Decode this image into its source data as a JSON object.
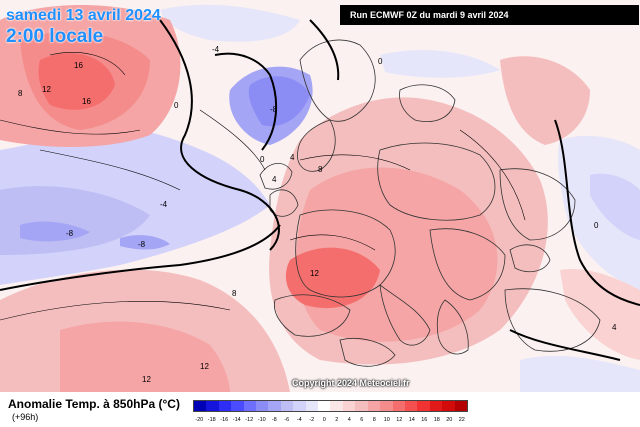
{
  "map": {
    "date_label": "samedi 13 avril 2024",
    "time_label": "2:00 locale",
    "run_label": "Run ECMWF 0Z du mardi 9 avril 2024",
    "copyright": "Copyright 2024 Meteociel.fr",
    "contour_labels": [
      "16",
      "12",
      "16",
      "8",
      "0",
      "-4",
      "-8",
      "-8",
      "-8",
      "-4",
      "0",
      "4",
      "8",
      "12",
      "12",
      "12",
      "0",
      "4",
      "8",
      "0",
      "4"
    ]
  },
  "legend": {
    "title": "Anomalie Temp. à 850hPa (°C)",
    "forecast_hour": "(+96h)",
    "ticks": [
      "-20",
      "-18",
      "-16",
      "-14",
      "-12",
      "-10",
      "-8",
      "-6",
      "-4",
      "-2",
      "0",
      "2",
      "4",
      "6",
      "8",
      "10",
      "12",
      "14",
      "16",
      "18",
      "20",
      "22"
    ],
    "colors": [
      "#0000b4",
      "#1414dc",
      "#2d2df5",
      "#4b4bff",
      "#6e6eff",
      "#8c8cf5",
      "#a5a5f5",
      "#bebef5",
      "#d2d2fa",
      "#e6e6fa",
      "#ffffff",
      "#fae6e6",
      "#fad2d2",
      "#f5bebe",
      "#f5a5a5",
      "#f58c8c",
      "#f56e6e",
      "#f55050",
      "#f03232",
      "#e11919",
      "#d20a0a",
      "#b40000"
    ]
  }
}
